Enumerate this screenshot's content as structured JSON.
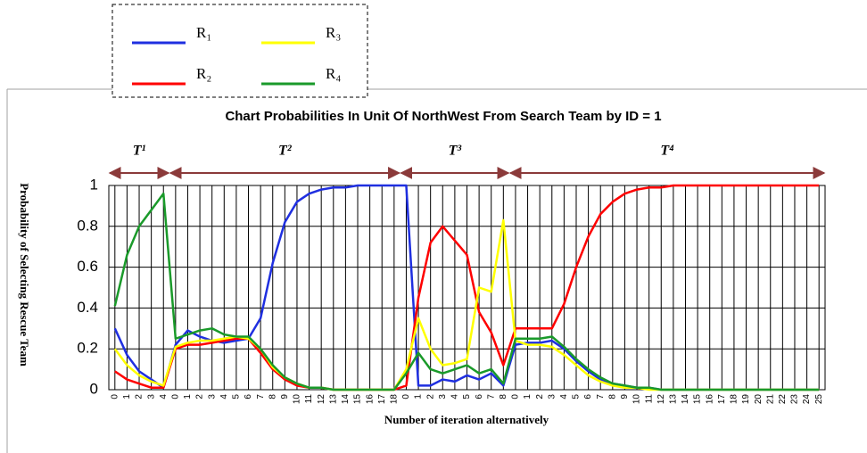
{
  "chart_data": {
    "type": "line",
    "title": "Chart Probabilities In Unit Of NorthWest From Search Team by ID = 1",
    "x_label": "Number of iteration alternatively",
    "y_label": "Probability of Selecting Rescue Team",
    "segments": [
      "T¹",
      "T²",
      "T³",
      "T⁴"
    ],
    "categories": [
      "0",
      "1",
      "2",
      "3",
      "4",
      "0",
      "1",
      "2",
      "3",
      "4",
      "5",
      "6",
      "7",
      "8",
      "9",
      "10",
      "11",
      "12",
      "13",
      "14",
      "15",
      "16",
      "17",
      "18",
      "0",
      "1",
      "2",
      "3",
      "4",
      "5",
      "6",
      "7",
      "8",
      "0",
      "1",
      "2",
      "3",
      "4",
      "5",
      "6",
      "7",
      "8",
      "9",
      "10",
      "11",
      "12",
      "13",
      "14",
      "15",
      "16",
      "17",
      "18",
      "19",
      "20",
      "21",
      "22",
      "23",
      "24",
      "25"
    ],
    "ylim": [
      0,
      1
    ],
    "yticks": [
      0,
      0.2,
      0.4,
      0.6,
      0.8,
      1
    ],
    "grid": true,
    "series": [
      {
        "name": "R₁",
        "color": "#1f2fe0",
        "values": [
          0.3,
          0.17,
          0.09,
          0.05,
          0.01,
          0.22,
          0.29,
          0.26,
          0.24,
          0.23,
          0.24,
          0.25,
          0.35,
          0.62,
          0.82,
          0.92,
          0.96,
          0.98,
          0.99,
          0.99,
          1,
          1,
          1,
          1,
          1,
          0.02,
          0.02,
          0.05,
          0.04,
          0.07,
          0.05,
          0.08,
          0.02,
          0.22,
          0.23,
          0.23,
          0.24,
          0.2,
          0.14,
          0.09,
          0.05,
          0.03,
          0.02,
          0.01,
          0.01,
          0,
          0,
          0,
          0,
          0,
          0,
          0,
          0,
          0,
          0,
          0,
          0,
          0,
          0
        ]
      },
      {
        "name": "R₂",
        "color": "#ff0000",
        "values": [
          0.09,
          0.05,
          0.03,
          0.01,
          0.01,
          0.2,
          0.22,
          0.22,
          0.23,
          0.24,
          0.25,
          0.25,
          0.18,
          0.1,
          0.05,
          0.02,
          0.01,
          0.01,
          0,
          0,
          0,
          0,
          0,
          0,
          0.02,
          0.45,
          0.72,
          0.8,
          0.73,
          0.66,
          0.38,
          0.28,
          0.12,
          0.3,
          0.3,
          0.3,
          0.3,
          0.42,
          0.6,
          0.75,
          0.86,
          0.92,
          0.96,
          0.98,
          0.99,
          0.99,
          1,
          1,
          1,
          1,
          1,
          1,
          1,
          1,
          1,
          1,
          1,
          1,
          1
        ]
      },
      {
        "name": "R₃",
        "color": "#ffff00",
        "values": [
          0.2,
          0.12,
          0.07,
          0.04,
          0.02,
          0.21,
          0.23,
          0.24,
          0.24,
          0.25,
          0.26,
          0.25,
          0.2,
          0.11,
          0.06,
          0.03,
          0.01,
          0.01,
          0,
          0,
          0,
          0,
          0,
          0,
          0.1,
          0.35,
          0.2,
          0.12,
          0.13,
          0.15,
          0.5,
          0.48,
          0.83,
          0.24,
          0.22,
          0.22,
          0.21,
          0.17,
          0.12,
          0.07,
          0.04,
          0.02,
          0.01,
          0.01,
          0,
          0,
          0,
          0,
          0,
          0,
          0,
          0,
          0,
          0,
          0,
          0,
          0,
          0,
          0
        ]
      },
      {
        "name": "R₄",
        "color": "#1a9a2a",
        "values": [
          0.41,
          0.66,
          0.8,
          0.88,
          0.96,
          0.25,
          0.27,
          0.29,
          0.3,
          0.27,
          0.26,
          0.26,
          0.2,
          0.12,
          0.06,
          0.03,
          0.01,
          0.01,
          0,
          0,
          0,
          0,
          0,
          0,
          0.08,
          0.18,
          0.1,
          0.08,
          0.1,
          0.12,
          0.08,
          0.1,
          0.03,
          0.25,
          0.25,
          0.25,
          0.26,
          0.21,
          0.15,
          0.1,
          0.06,
          0.03,
          0.02,
          0.01,
          0.01,
          0,
          0,
          0,
          0,
          0,
          0,
          0,
          0,
          0,
          0,
          0,
          0,
          0,
          0
        ]
      }
    ]
  }
}
